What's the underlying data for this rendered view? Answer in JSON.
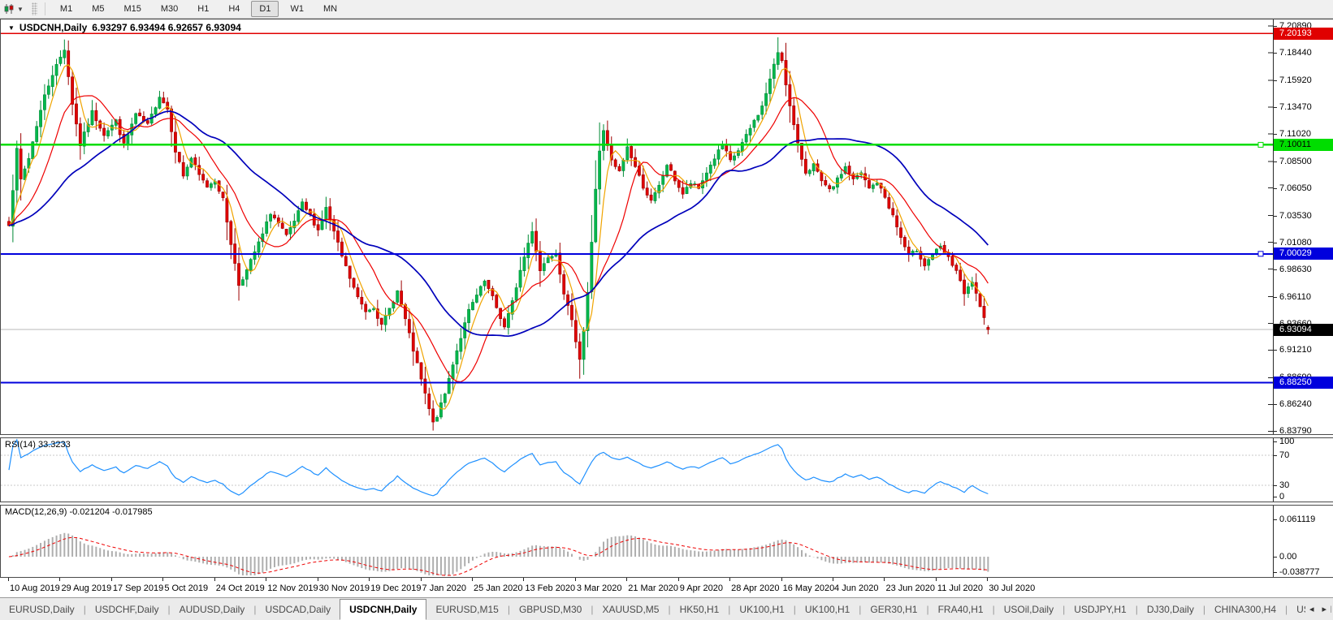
{
  "toolbar": {
    "timeframes": [
      "M1",
      "M5",
      "M15",
      "M30",
      "H1",
      "H4",
      "D1",
      "W1",
      "MN"
    ],
    "active_timeframe": "D1"
  },
  "chart": {
    "caret": "▼",
    "symbol_label": "USDCNH,Daily",
    "ohlc_label": "6.93297 6.93494 6.92657 6.93094"
  },
  "chart_data": {
    "type": "candlestick",
    "symbol": "USDCNH",
    "timeframe": "Daily",
    "bar_count": 248,
    "current_bar": {
      "open": 6.93297,
      "high": 6.93494,
      "low": 6.92657,
      "close": 6.93094
    },
    "price_max": 7.2089,
    "price_min": 6.8379,
    "y_ticks": [
      "7.20890",
      "7.18440",
      "7.15920",
      "7.13470",
      "7.11020",
      "7.08500",
      "7.06050",
      "7.03530",
      "7.01080",
      "6.98630",
      "6.96110",
      "6.93660",
      "6.91210",
      "6.88690",
      "6.86240",
      "6.83790"
    ],
    "x_dates": [
      "10 Aug 2019",
      "29 Aug 2019",
      "17 Sep 2019",
      "5 Oct 2019",
      "24 Oct 2019",
      "12 Nov 2019",
      "30 Nov 2019",
      "19 Dec 2019",
      "7 Jan 2020",
      "25 Jan 2020",
      "13 Feb 2020",
      "3 Mar 2020",
      "21 Mar 2020",
      "9 Apr 2020",
      "28 Apr 2020",
      "16 May 2020",
      "4 Jun 2020",
      "23 Jun 2020",
      "11 Jul 2020",
      "30 Jul 2020"
    ],
    "levels": [
      {
        "price": 7.20193,
        "label": "7.20193",
        "color": "#e00000",
        "text": "#ffffff",
        "width": 1.6,
        "marker": false,
        "current": false
      },
      {
        "price": 7.10011,
        "label": "7.10011",
        "color": "#00dd00",
        "text": "#000000",
        "width": 2.6,
        "marker": true,
        "current": false
      },
      {
        "price": 7.00029,
        "label": "7.00029",
        "color": "#0000dd",
        "text": "#ffffff",
        "width": 2.0,
        "marker": true,
        "current": false
      },
      {
        "price": 6.93094,
        "label": "6.93094",
        "color": "#000000",
        "text": "#ffffff",
        "width": 1.0,
        "marker": false,
        "current": true
      },
      {
        "price": 6.8825,
        "label": "6.88250",
        "color": "#0000dd",
        "text": "#ffffff",
        "width": 2.0,
        "marker": false,
        "current": false
      }
    ],
    "close_anchors": [
      [
        0,
        7.028
      ],
      [
        1,
        7.06
      ],
      [
        2,
        7.095
      ],
      [
        3,
        7.068
      ],
      [
        5,
        7.088
      ],
      [
        7,
        7.118
      ],
      [
        9,
        7.145
      ],
      [
        11,
        7.165
      ],
      [
        14,
        7.188
      ],
      [
        16,
        7.138
      ],
      [
        18,
        7.1
      ],
      [
        21,
        7.13
      ],
      [
        24,
        7.11
      ],
      [
        27,
        7.122
      ],
      [
        29,
        7.1
      ],
      [
        32,
        7.128
      ],
      [
        35,
        7.118
      ],
      [
        38,
        7.145
      ],
      [
        40,
        7.133
      ],
      [
        42,
        7.095
      ],
      [
        44,
        7.072
      ],
      [
        46,
        7.088
      ],
      [
        48,
        7.072
      ],
      [
        50,
        7.062
      ],
      [
        52,
        7.068
      ],
      [
        54,
        7.05
      ],
      [
        56,
        7.01
      ],
      [
        58,
        6.972
      ],
      [
        60,
        6.985
      ],
      [
        62,
        7.002
      ],
      [
        64,
        7.018
      ],
      [
        66,
        7.038
      ],
      [
        68,
        7.028
      ],
      [
        70,
        7.016
      ],
      [
        72,
        7.03
      ],
      [
        74,
        7.046
      ],
      [
        76,
        7.035
      ],
      [
        78,
        7.022
      ],
      [
        80,
        7.042
      ],
      [
        82,
        7.02
      ],
      [
        84,
        6.998
      ],
      [
        86,
        6.978
      ],
      [
        88,
        6.96
      ],
      [
        90,
        6.948
      ],
      [
        92,
        6.952
      ],
      [
        94,
        6.934
      ],
      [
        96,
        6.95
      ],
      [
        98,
        6.966
      ],
      [
        100,
        6.94
      ],
      [
        102,
        6.912
      ],
      [
        104,
        6.885
      ],
      [
        106,
        6.858
      ],
      [
        107,
        6.845
      ],
      [
        108,
        6.852
      ],
      [
        110,
        6.872
      ],
      [
        112,
        6.9
      ],
      [
        114,
        6.924
      ],
      [
        116,
        6.948
      ],
      [
        118,
        6.962
      ],
      [
        120,
        6.975
      ],
      [
        122,
        6.96
      ],
      [
        124,
        6.942
      ],
      [
        125,
        6.933
      ],
      [
        127,
        6.956
      ],
      [
        129,
        6.985
      ],
      [
        131,
        7.01
      ],
      [
        132,
        7.022
      ],
      [
        134,
        6.985
      ],
      [
        136,
        6.998
      ],
      [
        138,
        7.002
      ],
      [
        140,
        6.965
      ],
      [
        142,
        6.938
      ],
      [
        144,
        6.905
      ],
      [
        145,
        6.93
      ],
      [
        146,
        6.965
      ],
      [
        147,
        7.01
      ],
      [
        148,
        7.06
      ],
      [
        149,
        7.095
      ],
      [
        150,
        7.112
      ],
      [
        152,
        7.085
      ],
      [
        154,
        7.075
      ],
      [
        156,
        7.098
      ],
      [
        158,
        7.08
      ],
      [
        160,
        7.062
      ],
      [
        162,
        7.048
      ],
      [
        164,
        7.062
      ],
      [
        166,
        7.082
      ],
      [
        168,
        7.068
      ],
      [
        170,
        7.055
      ],
      [
        172,
        7.065
      ],
      [
        174,
        7.06
      ],
      [
        176,
        7.075
      ],
      [
        178,
        7.088
      ],
      [
        180,
        7.1
      ],
      [
        182,
        7.085
      ],
      [
        184,
        7.095
      ],
      [
        186,
        7.108
      ],
      [
        188,
        7.122
      ],
      [
        190,
        7.135
      ],
      [
        192,
        7.16
      ],
      [
        194,
        7.185
      ],
      [
        195,
        7.178
      ],
      [
        197,
        7.135
      ],
      [
        199,
        7.1
      ],
      [
        201,
        7.075
      ],
      [
        203,
        7.082
      ],
      [
        205,
        7.066
      ],
      [
        207,
        7.058
      ],
      [
        209,
        7.068
      ],
      [
        211,
        7.08
      ],
      [
        213,
        7.068
      ],
      [
        215,
        7.074
      ],
      [
        217,
        7.06
      ],
      [
        219,
        7.066
      ],
      [
        221,
        7.052
      ],
      [
        223,
        7.035
      ],
      [
        225,
        7.015
      ],
      [
        227,
        6.998
      ],
      [
        229,
        7.004
      ],
      [
        231,
        6.99
      ],
      [
        233,
        7.0
      ],
      [
        235,
        7.006
      ],
      [
        237,
        6.996
      ],
      [
        239,
        6.985
      ],
      [
        241,
        6.963
      ],
      [
        243,
        6.975
      ],
      [
        245,
        6.95
      ],
      [
        247,
        6.93094
      ]
    ],
    "wick_extremes": [
      {
        "bar": 14,
        "high": 7.1965
      },
      {
        "bar": 107,
        "low": 6.8385
      },
      {
        "bar": 144,
        "low": 6.886
      },
      {
        "bar": 194,
        "high": 7.1985
      }
    ],
    "moving_averages": [
      {
        "period": 5,
        "color": "#f0a400",
        "width": 1.2
      },
      {
        "period": 13,
        "color": "#ee0000",
        "width": 1.2
      },
      {
        "period": 34,
        "color": "#0000bb",
        "width": 1.7
      }
    ],
    "up_color": "#00b84c",
    "up_stroke": "#008a36",
    "down_color": "#e00000",
    "down_stroke": "#9c0000",
    "current_line_color": "#b8b8b8"
  },
  "rsi": {
    "label": "RSI(14) 33.3233",
    "period": 14,
    "value": 33.3233,
    "ticks": [
      {
        "v": 100,
        "t": "100"
      },
      {
        "v": 70,
        "t": "70"
      },
      {
        "v": 30,
        "t": "30"
      },
      {
        "v": 0,
        "t": "0"
      }
    ],
    "levels": [
      70,
      30
    ],
    "line_color": "#1e90ff",
    "level_color": "#c8c8c8"
  },
  "macd": {
    "label": "MACD(12,26,9) -0.021204 -0.017985",
    "fast": 12,
    "slow": 26,
    "signal": 9,
    "macd_value": -0.021204,
    "signal_value": -0.017985,
    "ticks": [
      {
        "v": 0.061119,
        "t": "0.061119"
      },
      {
        "v": 0,
        "t": "0.00"
      },
      {
        "v": -0.038777,
        "t": "-0.038777"
      }
    ],
    "histogram_color": "#aeaeae",
    "signal_color": "#ee0000"
  },
  "tabs": {
    "items": [
      "EURUSD,Daily",
      "USDCHF,Daily",
      "AUDUSD,Daily",
      "USDCAD,Daily",
      "USDCNH,Daily",
      "EURUSD,M15",
      "GBPUSD,M30",
      "XAUUSD,M5",
      "HK50,H1",
      "UK100,H1",
      "UK100,H1",
      "GER30,H1",
      "FRA40,H1",
      "USOil,Daily",
      "USDJPY,H1",
      "DJ30,Daily",
      "CHINA300,H4",
      "USOil,H"
    ],
    "active": "USDCNH,Daily",
    "scroll_left": "◂",
    "scroll_right": "▸"
  }
}
